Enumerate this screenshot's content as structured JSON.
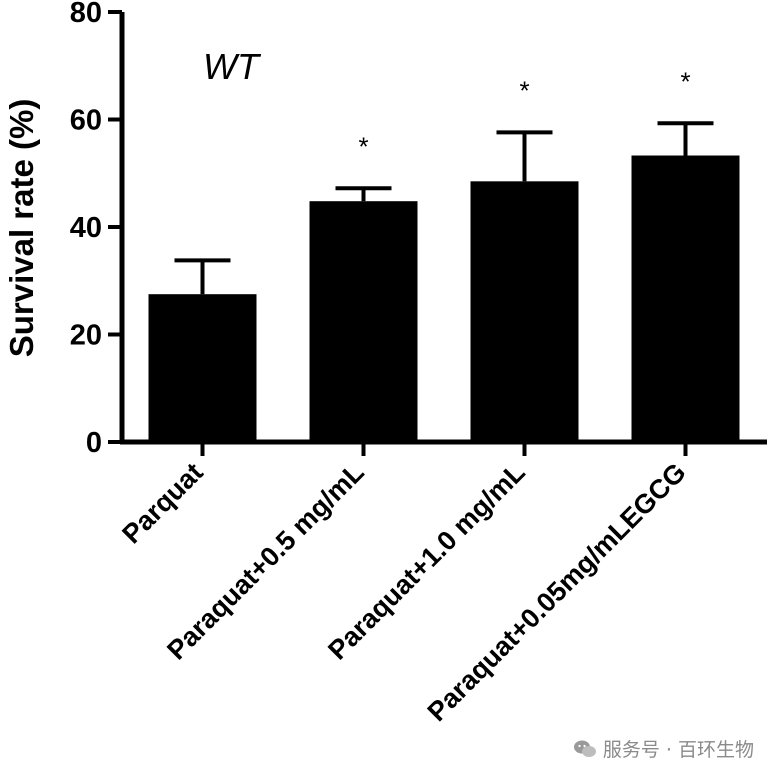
{
  "chart_data": {
    "type": "bar",
    "title": "",
    "annotation": "WT",
    "xlabel": "",
    "ylabel": "Survival rate (%)",
    "ylim": [
      0,
      80
    ],
    "yticks": [
      0,
      20,
      40,
      60,
      80
    ],
    "grid": false,
    "categories": [
      "Parquat",
      "Paraquat+0.5 mg/mL",
      "Paraquat+1.0 mg/mL",
      "Paraquat+0.05mg/mLEGCG"
    ],
    "values": [
      27.5,
      44.8,
      48.5,
      53.3
    ],
    "error_upper": [
      33.8,
      47.2,
      57.6,
      59.3
    ],
    "significance": [
      "",
      "*",
      "*",
      "*"
    ],
    "bar_color": "#000000"
  },
  "watermark": {
    "icon": "wechat-icon",
    "text": "服务号 · 百环生物"
  }
}
